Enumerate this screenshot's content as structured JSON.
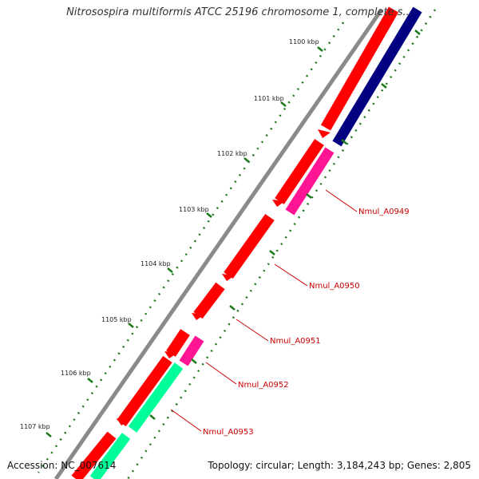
{
  "map": {
    "title": "Nitrosospira multiformis ATCC 25196 chromosome 1, complete s...",
    "footer": {
      "accession": "Accession: NC_007614",
      "stats": "Topology: circular; Length: 3,184,243 bp; Genes: 2,805"
    },
    "ticks": [
      "1100 kbp",
      "1101 kbp",
      "1102 kbp",
      "1103 kbp",
      "1104 kbp",
      "1105 kbp",
      "1106 kbp",
      "1107 kbp"
    ],
    "gene_labels": [
      "Nmul_A0949",
      "Nmul_A0950",
      "Nmul_A0951",
      "Nmul_A0952",
      "Nmul_A0953"
    ],
    "colors": {
      "forward_cds": "#ff0000",
      "reverse_cds": "#ff0000",
      "rna": "#000080",
      "magenta_feature": "#ff1493",
      "green_feature": "#00ff99",
      "backbone": "#808080",
      "tick_marks": "#006400",
      "label_text": "#cc0000"
    }
  }
}
